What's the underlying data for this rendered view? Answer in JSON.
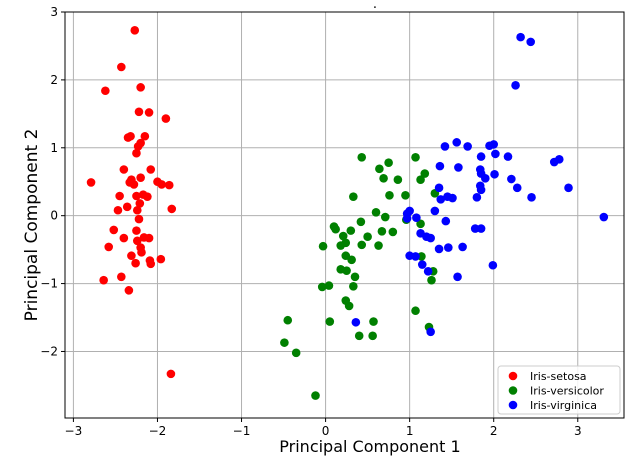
{
  "chart_data": {
    "type": "scatter",
    "title": ".",
    "xlabel": "Principal Component 1",
    "ylabel": "Principal Component 2",
    "xlim": [
      -3.1,
      3.55
    ],
    "ylim": [
      -2.98,
      3.0
    ],
    "xticks": [
      -3,
      -2,
      -1,
      0,
      1,
      2,
      3
    ],
    "yticks": [
      -2,
      -1,
      0,
      1,
      2,
      3
    ],
    "xtick_labels": [
      "−3",
      "−2",
      "−1",
      "0",
      "1",
      "2",
      "3"
    ],
    "ytick_labels": [
      "−2",
      "−1",
      "0",
      "1",
      "2",
      "3"
    ],
    "grid": true,
    "legend_position": "lower-right",
    "series": [
      {
        "name": "Iris-setosa",
        "color": "#ff0000",
        "points": [
          [
            -2.27,
            2.73
          ],
          [
            -2.43,
            2.19
          ],
          [
            -2.62,
            1.84
          ],
          [
            -2.2,
            1.89
          ],
          [
            -2.22,
            1.53
          ],
          [
            -2.1,
            1.52
          ],
          [
            -1.9,
            1.43
          ],
          [
            -2.35,
            1.15
          ],
          [
            -2.32,
            1.17
          ],
          [
            -2.15,
            1.17
          ],
          [
            -2.2,
            1.07
          ],
          [
            -2.23,
            1.02
          ],
          [
            -2.25,
            0.92
          ],
          [
            -2.4,
            0.68
          ],
          [
            -2.08,
            0.68
          ],
          [
            -2.0,
            0.5
          ],
          [
            -2.31,
            0.53
          ],
          [
            -2.2,
            0.56
          ],
          [
            -2.28,
            0.46
          ],
          [
            -2.33,
            0.49
          ],
          [
            -1.95,
            0.46
          ],
          [
            -1.86,
            0.45
          ],
          [
            -2.79,
            0.49
          ],
          [
            -2.45,
            0.29
          ],
          [
            -2.25,
            0.29
          ],
          [
            -2.17,
            0.31
          ],
          [
            -2.12,
            0.28
          ],
          [
            -2.21,
            0.18
          ],
          [
            -2.47,
            0.08
          ],
          [
            -2.36,
            0.13
          ],
          [
            -2.24,
            0.08
          ],
          [
            -1.83,
            0.1
          ],
          [
            -2.22,
            -0.05
          ],
          [
            -2.52,
            -0.21
          ],
          [
            -2.4,
            -0.33
          ],
          [
            -2.24,
            -0.37
          ],
          [
            -2.16,
            -0.32
          ],
          [
            -2.1,
            -0.33
          ],
          [
            -2.25,
            -0.22
          ],
          [
            -2.58,
            -0.46
          ],
          [
            -2.2,
            -0.47
          ],
          [
            -2.19,
            -0.54
          ],
          [
            -2.31,
            -0.59
          ],
          [
            -1.96,
            -0.64
          ],
          [
            -2.09,
            -0.66
          ],
          [
            -2.26,
            -0.7
          ],
          [
            -2.08,
            -0.71
          ],
          [
            -2.64,
            -0.95
          ],
          [
            -2.43,
            -0.9
          ],
          [
            -2.34,
            -1.1
          ],
          [
            -1.84,
            -2.33
          ]
        ]
      },
      {
        "name": "Iris-versicolor",
        "color": "#008000",
        "points": [
          [
            0.43,
            0.86
          ],
          [
            0.75,
            0.78
          ],
          [
            1.07,
            0.86
          ],
          [
            0.64,
            0.69
          ],
          [
            0.69,
            0.55
          ],
          [
            0.86,
            0.53
          ],
          [
            1.13,
            0.53
          ],
          [
            1.18,
            0.62
          ],
          [
            0.95,
            0.3
          ],
          [
            1.3,
            0.33
          ],
          [
            0.33,
            0.28
          ],
          [
            0.76,
            0.3
          ],
          [
            0.6,
            0.05
          ],
          [
            0.71,
            -0.02
          ],
          [
            0.96,
            -0.06
          ],
          [
            1.13,
            -0.12
          ],
          [
            0.42,
            -0.09
          ],
          [
            0.1,
            -0.16
          ],
          [
            0.12,
            -0.2
          ],
          [
            0.3,
            -0.22
          ],
          [
            0.21,
            -0.3
          ],
          [
            0.5,
            -0.31
          ],
          [
            0.67,
            -0.23
          ],
          [
            0.8,
            -0.24
          ],
          [
            0.24,
            -0.4
          ],
          [
            0.43,
            -0.43
          ],
          [
            0.63,
            -0.44
          ],
          [
            0.18,
            -0.44
          ],
          [
            -0.03,
            -0.45
          ],
          [
            1.14,
            -0.6
          ],
          [
            0.24,
            -0.59
          ],
          [
            0.31,
            -0.65
          ],
          [
            1.28,
            -0.82
          ],
          [
            0.18,
            -0.79
          ],
          [
            0.25,
            -0.81
          ],
          [
            0.35,
            -0.9
          ],
          [
            1.26,
            -0.95
          ],
          [
            0.04,
            -1.03
          ],
          [
            -0.04,
            -1.05
          ],
          [
            0.33,
            -1.04
          ],
          [
            0.24,
            -1.25
          ],
          [
            0.28,
            -1.33
          ],
          [
            1.07,
            -1.4
          ],
          [
            0.57,
            -1.56
          ],
          [
            0.05,
            -1.56
          ],
          [
            -0.45,
            -1.54
          ],
          [
            1.23,
            -1.64
          ],
          [
            0.4,
            -1.77
          ],
          [
            0.56,
            -1.77
          ],
          [
            -0.49,
            -1.87
          ],
          [
            -0.35,
            -2.02
          ],
          [
            -0.12,
            -2.65
          ]
        ]
      },
      {
        "name": "Iris-virginica",
        "color": "#0000ff",
        "points": [
          [
            2.32,
            2.63
          ],
          [
            2.44,
            2.56
          ],
          [
            2.26,
            1.92
          ],
          [
            1.56,
            1.08
          ],
          [
            1.42,
            1.02
          ],
          [
            1.69,
            1.02
          ],
          [
            1.95,
            1.03
          ],
          [
            2.0,
            1.05
          ],
          [
            2.02,
            0.91
          ],
          [
            1.85,
            0.87
          ],
          [
            2.17,
            0.87
          ],
          [
            2.78,
            0.83
          ],
          [
            2.72,
            0.79
          ],
          [
            1.36,
            0.73
          ],
          [
            1.58,
            0.71
          ],
          [
            1.84,
            0.68
          ],
          [
            1.85,
            0.62
          ],
          [
            2.01,
            0.61
          ],
          [
            1.9,
            0.55
          ],
          [
            2.21,
            0.54
          ],
          [
            1.84,
            0.44
          ],
          [
            1.85,
            0.38
          ],
          [
            1.35,
            0.41
          ],
          [
            2.28,
            0.41
          ],
          [
            2.89,
            0.41
          ],
          [
            1.45,
            0.28
          ],
          [
            1.37,
            0.24
          ],
          [
            1.51,
            0.26
          ],
          [
            2.45,
            0.27
          ],
          [
            1.8,
            0.27
          ],
          [
            0.97,
            0.03
          ],
          [
            1.0,
            0.07
          ],
          [
            1.08,
            -0.03
          ],
          [
            1.3,
            0.07
          ],
          [
            0.97,
            -0.04
          ],
          [
            3.31,
            -0.02
          ],
          [
            1.43,
            -0.08
          ],
          [
            1.13,
            -0.26
          ],
          [
            1.2,
            -0.31
          ],
          [
            1.25,
            -0.33
          ],
          [
            1.78,
            -0.19
          ],
          [
            1.85,
            -0.19
          ],
          [
            1.63,
            -0.46
          ],
          [
            1.46,
            -0.47
          ],
          [
            1.35,
            -0.49
          ],
          [
            1.0,
            -0.59
          ],
          [
            1.07,
            -0.6
          ],
          [
            1.15,
            -0.72
          ],
          [
            1.99,
            -0.73
          ],
          [
            1.22,
            -0.82
          ],
          [
            1.57,
            -0.9
          ],
          [
            0.36,
            -1.57
          ],
          [
            1.25,
            -1.71
          ]
        ]
      }
    ]
  }
}
